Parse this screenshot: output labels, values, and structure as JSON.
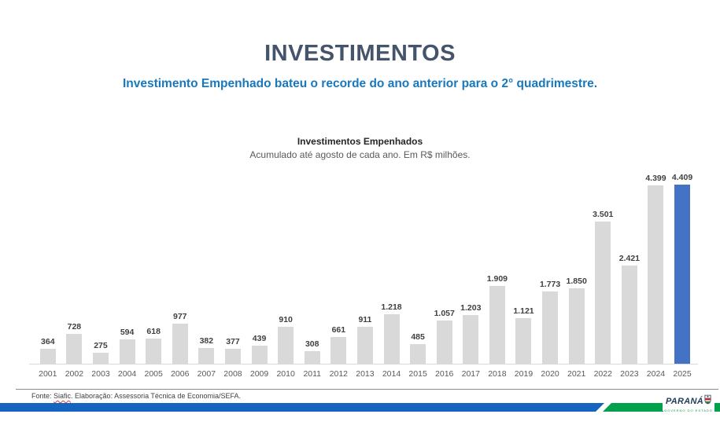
{
  "page": {
    "title": "INVESTIMENTOS",
    "subtitle": "Investimento Empenhado bateu o recorde do ano anterior para o 2° quadrimestre."
  },
  "chart_data": {
    "type": "bar",
    "title": "Investimentos Empenhados",
    "subtitle": "Acumulado até agosto de cada ano. Em R$ milhões.",
    "categories": [
      "2001",
      "2002",
      "2003",
      "2004",
      "2005",
      "2006",
      "2007",
      "2008",
      "2009",
      "2010",
      "2011",
      "2012",
      "2013",
      "2014",
      "2015",
      "2016",
      "2017",
      "2018",
      "2019",
      "2020",
      "2021",
      "2022",
      "2023",
      "2024",
      "2025"
    ],
    "values": [
      364,
      728,
      275,
      594,
      618,
      977,
      382,
      377,
      439,
      910,
      308,
      661,
      911,
      1218,
      485,
      1057,
      1203,
      1909,
      1121,
      1773,
      1850,
      3501,
      2421,
      4399,
      4409
    ],
    "value_labels": [
      "364",
      "728",
      "275",
      "594",
      "618",
      "977",
      "382",
      "377",
      "439",
      "910",
      "308",
      "661",
      "911",
      "1.218",
      "485",
      "1.057",
      "1.203",
      "1.909",
      "1.121",
      "1.773",
      "1.850",
      "3.501",
      "2.421",
      "4.399",
      "4.409"
    ],
    "ylim": [
      0,
      4409
    ],
    "highlight_index": 24,
    "bar_color_default": "#d9d9d9",
    "bar_color_highlight": "#4472c4",
    "grid": false,
    "legend": false,
    "xlabel": "",
    "ylabel": ""
  },
  "footer": {
    "source_prefix": "Fonte: ",
    "source_word": "Siafic",
    "source_suffix": ". Elaboração: Assessoria Técnica de Economia/SEFA."
  },
  "logo": {
    "name": "PARANÁ",
    "tagline": "GOVERNO DO ESTADO"
  },
  "colors": {
    "title": "#44546a",
    "subtitle": "#1878be",
    "stripe_blue": "#1565c0",
    "stripe_green": "#00a14b"
  }
}
